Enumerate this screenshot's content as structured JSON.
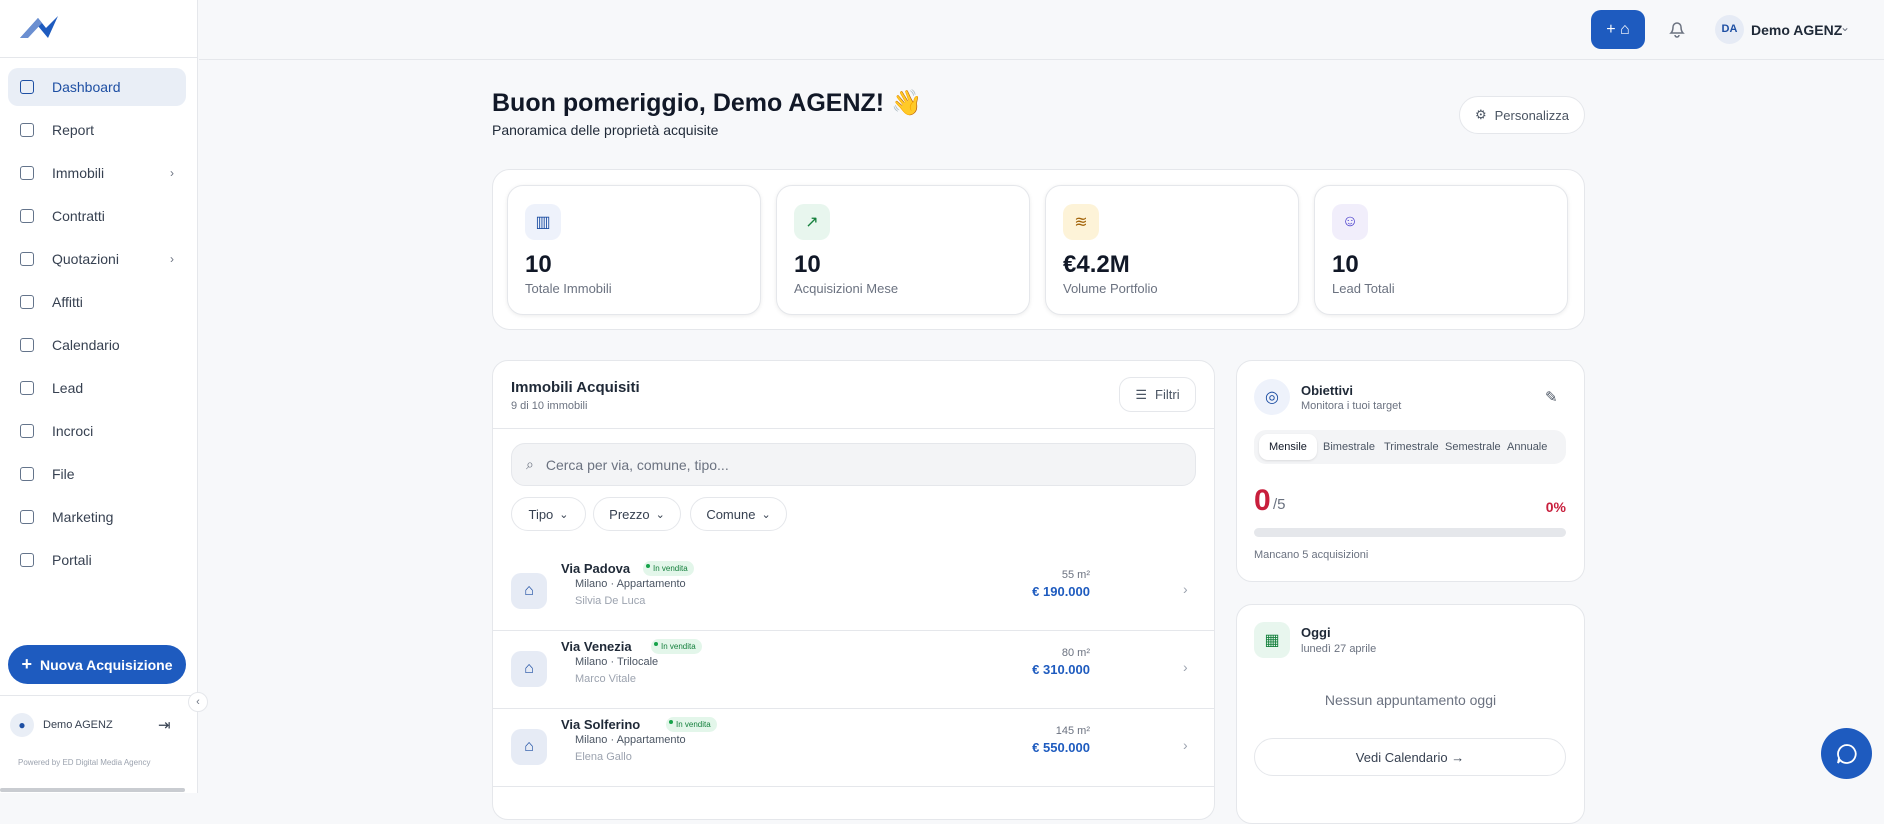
{
  "sidebar": {
    "nav": [
      "Dashboard",
      "Report",
      "Immobili",
      "Contratti",
      "Quotazioni",
      "Affitti",
      "Calendario",
      "Lead",
      "Incroci",
      "File",
      "Marketing",
      "Portali"
    ],
    "cta": "Nuova Acquisizione",
    "user": "Demo AGENZ",
    "powered_by": "Powered by ED Digital Media Agency"
  },
  "topbar": {
    "initials": "DA",
    "user": "Demo AGENZ"
  },
  "header": {
    "title": "Buon pomeriggio, Demo AGENZ! 👋",
    "subtitle": "Panoramica delle proprietà acquisite",
    "customize": "Personalizza"
  },
  "stats": [
    {
      "value": "10",
      "label": "Totale Immobili"
    },
    {
      "value": "10",
      "label": "Acquisizioni Mese"
    },
    {
      "value": "€4.2M",
      "label": "Volume Portfolio"
    },
    {
      "value": "10",
      "label": "Lead Totali"
    }
  ],
  "list": {
    "title": "Immobili Acquisiti",
    "count": "9 di 10 immobili",
    "filter_button": "Filtri",
    "search_placeholder": "Cerca per via, comune, tipo...",
    "filters": [
      "Tipo",
      "Prezzo",
      "Comune"
    ],
    "items": [
      {
        "street": "Via Padova",
        "status": "In vendita",
        "location": "Milano · Appartamento",
        "agent": "Silvia De Luca",
        "area": "55 m²",
        "price": "€ 190.000"
      },
      {
        "street": "Via Venezia",
        "status": "In vendita",
        "location": "Milano · Trilocale",
        "agent": "Marco Vitale",
        "area": "80 m²",
        "price": "€ 310.000"
      },
      {
        "street": "Via Solferino",
        "status": "In vendita",
        "location": "Milano · Appartamento",
        "agent": "Elena Gallo",
        "area": "145 m²",
        "price": "€ 550.000"
      }
    ]
  },
  "goals": {
    "title": "Obiettivi",
    "subtitle": "Monitora i tuoi target",
    "tabs": [
      "Mensile",
      "Bimestrale",
      "Trimestrale",
      "Semestrale",
      "Annuale"
    ],
    "value": "0",
    "target": "/5",
    "percent": "0%",
    "note": "Mancano 5 acquisizioni"
  },
  "today": {
    "title": "Oggi",
    "date": "lunedì 27 aprile",
    "empty": "Nessun appuntamento oggi",
    "button": "Vedi Calendario →"
  }
}
